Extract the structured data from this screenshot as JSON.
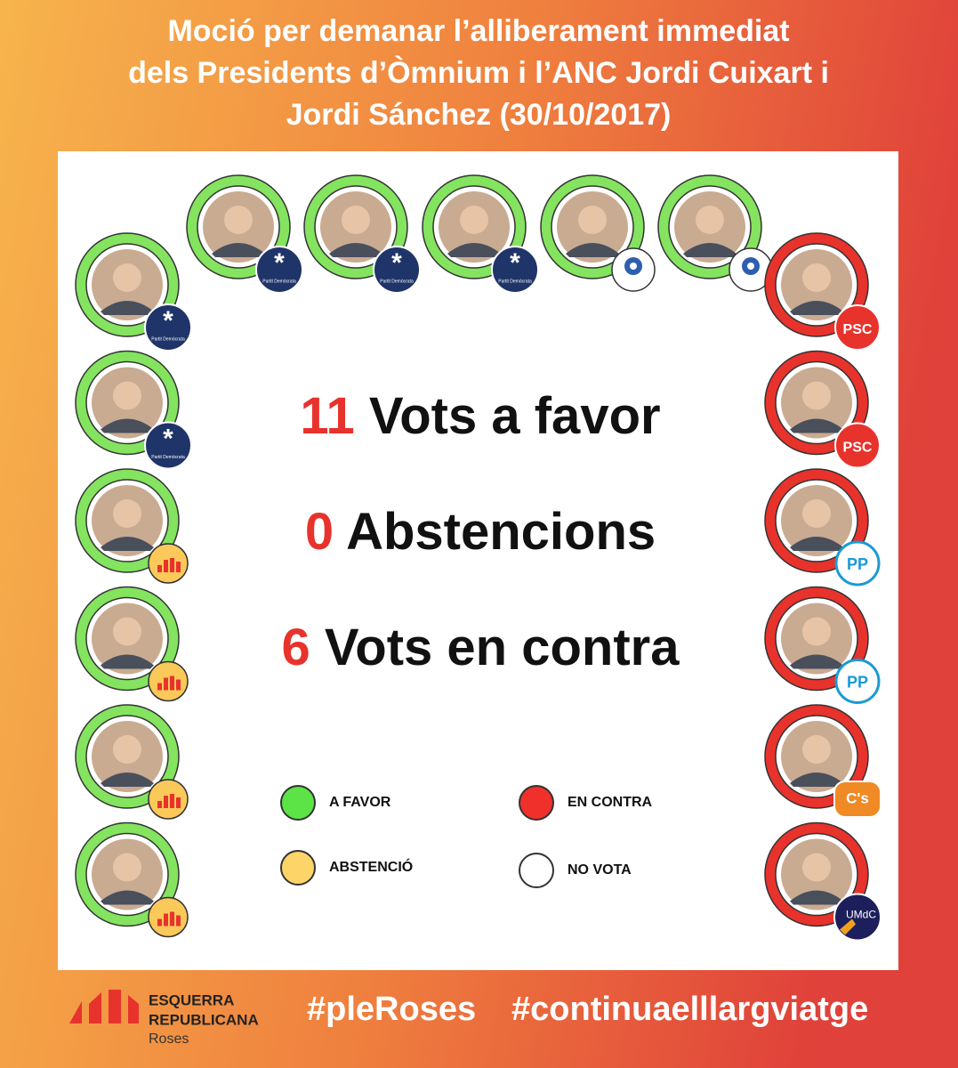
{
  "title": {
    "lines": [
      "Moció per demanar l’alliberament immediat",
      "dels Presidents d’Òmnium i l’ANC Jordi Cuixart i",
      "Jordi Sánchez (30/10/2017)"
    ]
  },
  "results": [
    {
      "number": 11,
      "label": "Vots a favor"
    },
    {
      "number": 0,
      "label": "Abstencions"
    },
    {
      "number": 6,
      "label": "Vots en contra"
    }
  ],
  "legend": [
    {
      "label": "A FAVOR",
      "color": "#5ce345"
    },
    {
      "label": "EN CONTRA",
      "color": "#f0302a"
    },
    {
      "label": "ABSTENCIÓ",
      "color": "#fcd468"
    },
    {
      "label": "NO VOTA",
      "color": "#ffffff"
    }
  ],
  "badge_texts": {
    "pd": "Partit Demòcrata",
    "psc": "PSC",
    "pp": "PP",
    "cs": "C's",
    "umdc": "UMdC"
  },
  "members": {
    "top": [
      {
        "ring": "#84e35f",
        "badge": "pd"
      },
      {
        "ring": "#84e35f",
        "badge": "pd"
      },
      {
        "ring": "#84e35f",
        "badge": "pd"
      },
      {
        "ring": "#84e35f",
        "badge": "flower"
      },
      {
        "ring": "#84e35f",
        "badge": "flower"
      }
    ],
    "left": [
      {
        "ring": "#84e35f",
        "badge": "pd"
      },
      {
        "ring": "#84e35f",
        "badge": "pd"
      },
      {
        "ring": "#84e35f",
        "badge": "erc"
      },
      {
        "ring": "#84e35f",
        "badge": "erc"
      },
      {
        "ring": "#84e35f",
        "badge": "erc"
      },
      {
        "ring": "#84e35f",
        "badge": "erc"
      }
    ],
    "right": [
      {
        "ring": "#e8322c",
        "badge": "psc"
      },
      {
        "ring": "#e8322c",
        "badge": "psc"
      },
      {
        "ring": "#e8322c",
        "badge": "pp"
      },
      {
        "ring": "#e8322c",
        "badge": "pp"
      },
      {
        "ring": "#e8322c",
        "badge": "cs"
      },
      {
        "ring": "#e8322c",
        "badge": "umdc"
      }
    ]
  },
  "footer": {
    "party_lines": [
      "ESQUERRA",
      "REPUBLICANA"
    ],
    "town": "Roses",
    "hashtags": [
      "#pleRoses",
      "#continuaelllargviatge"
    ]
  }
}
